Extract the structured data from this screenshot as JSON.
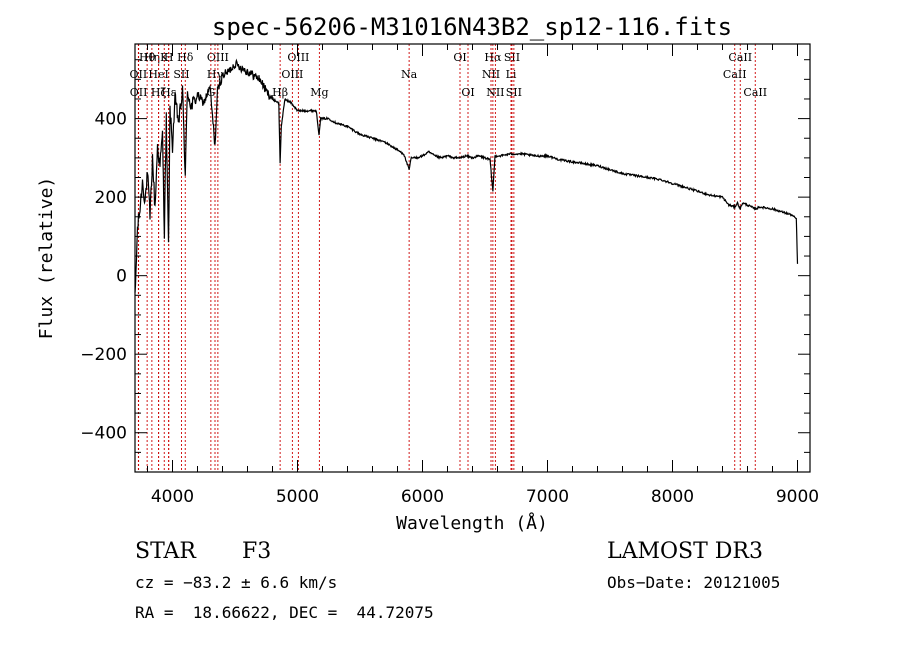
{
  "chart_data": {
    "type": "line",
    "title": "spec-56206-M31016N43B2_sp12-116.fits",
    "xlabel": "Wavelength (Å)",
    "ylabel": "Flux (relative)",
    "xlim": [
      3700,
      9100
    ],
    "ylim": [
      -500,
      590
    ],
    "xticks": [
      4000,
      5000,
      6000,
      7000,
      8000,
      9000
    ],
    "xtick_labels": [
      "4000",
      "5000",
      "6000",
      "7000",
      "8000",
      "9000"
    ],
    "yticks": [
      -400,
      -200,
      0,
      200,
      400
    ],
    "ytick_labels": [
      "−400",
      "−200",
      "0",
      "200",
      "400"
    ],
    "grid": false,
    "series": [
      {
        "name": "spectrum",
        "x": [
          3700,
          3720,
          3740,
          3760,
          3780,
          3800,
          3820,
          3840,
          3860,
          3880,
          3900,
          3920,
          3935,
          3950,
          3968,
          3980,
          4000,
          4020,
          4050,
          4080,
          4102,
          4120,
          4150,
          4200,
          4250,
          4300,
          4340,
          4360,
          4400,
          4450,
          4500,
          4550,
          4600,
          4650,
          4700,
          4750,
          4800,
          4850,
          4861,
          4870,
          4900,
          4950,
          5000,
          5050,
          5100,
          5150,
          5172,
          5185,
          5200,
          5250,
          5300,
          5400,
          5500,
          5600,
          5700,
          5800,
          5850,
          5893,
          5910,
          5950,
          6000,
          6050,
          6100,
          6150,
          6200,
          6250,
          6300,
          6350,
          6400,
          6450,
          6500,
          6540,
          6563,
          6580,
          6620,
          6700,
          6800,
          6900,
          7000,
          7100,
          7200,
          7300,
          7400,
          7500,
          7600,
          7700,
          7800,
          7900,
          8000,
          8100,
          8200,
          8300,
          8400,
          8450,
          8498,
          8520,
          8542,
          8560,
          8600,
          8662,
          8700,
          8800,
          8900,
          8950,
          8990,
          9000
        ],
        "values": [
          -60,
          120,
          170,
          240,
          190,
          260,
          150,
          300,
          170,
          330,
          280,
          360,
          110,
          400,
          70,
          420,
          330,
          450,
          390,
          470,
          260,
          470,
          430,
          460,
          440,
          480,
          330,
          470,
          510,
          520,
          540,
          530,
          520,
          510,
          500,
          470,
          450,
          440,
          285,
          380,
          450,
          440,
          420,
          420,
          420,
          420,
          360,
          400,
          400,
          400,
          390,
          380,
          360,
          350,
          340,
          320,
          310,
          270,
          300,
          300,
          305,
          315,
          305,
          300,
          305,
          300,
          300,
          305,
          300,
          305,
          300,
          295,
          215,
          305,
          305,
          310,
          310,
          305,
          305,
          295,
          290,
          285,
          280,
          270,
          260,
          255,
          250,
          245,
          235,
          225,
          215,
          205,
          200,
          180,
          175,
          185,
          170,
          185,
          180,
          170,
          175,
          170,
          160,
          155,
          145,
          30
        ]
      }
    ],
    "lines": [
      {
        "name": "Hθ",
        "wavelength": 3797,
        "row": 1
      },
      {
        "name": "OII",
        "wavelength": 3727,
        "row": 2
      },
      {
        "name": "OII",
        "wavelength": 3729,
        "row": 3
      },
      {
        "name": "K",
        "wavelength": 3934,
        "row": 1
      },
      {
        "name": "H",
        "wavelength": 3969,
        "row": 1
      },
      {
        "name": "HeI",
        "wavelength": 3889,
        "row": 2
      },
      {
        "name": "Hη",
        "wavelength": 3835,
        "row": 1
      },
      {
        "name": "Hζ",
        "wavelength": 3889,
        "row": 3
      },
      {
        "name": "Hε",
        "wavelength": 3970,
        "row": 3
      },
      {
        "name": "SII",
        "wavelength": 4072,
        "row": 2
      },
      {
        "name": "Hδ",
        "wavelength": 4102,
        "row": 1
      },
      {
        "name": "OIII",
        "wavelength": 4363,
        "row": 1
      },
      {
        "name": "Hγ",
        "wavelength": 4340,
        "row": 2
      },
      {
        "name": "G",
        "wavelength": 4307,
        "row": 3
      },
      {
        "name": "OIII",
        "wavelength": 5007,
        "row": 1
      },
      {
        "name": "OIII",
        "wavelength": 4959,
        "row": 2
      },
      {
        "name": "Hβ",
        "wavelength": 4861,
        "row": 4
      },
      {
        "name": "Mg",
        "wavelength": 5175,
        "row": 4
      },
      {
        "name": "Na",
        "wavelength": 5893,
        "row": 2
      },
      {
        "name": "OI",
        "wavelength": 6300,
        "row": 1
      },
      {
        "name": "OI",
        "wavelength": 6364,
        "row": 3
      },
      {
        "name": "Hα",
        "wavelength": 6563,
        "row": 1
      },
      {
        "name": "SII",
        "wavelength": 6716,
        "row": 1
      },
      {
        "name": "NII",
        "wavelength": 6548,
        "row": 2
      },
      {
        "name": "Li",
        "wavelength": 6708,
        "row": 2
      },
      {
        "name": "NII",
        "wavelength": 6583,
        "row": 3
      },
      {
        "name": "SII",
        "wavelength": 6731,
        "row": 3
      },
      {
        "name": "CaII",
        "wavelength": 8542,
        "row": 1
      },
      {
        "name": "CaII",
        "wavelength": 8498,
        "row": 2
      },
      {
        "name": "CaII",
        "wavelength": 8662,
        "row": 3
      }
    ]
  },
  "info": {
    "object_class": "STAR",
    "subclass": "F3",
    "survey": "LAMOST DR3",
    "redshift": "cz = −83.2 ± 6.6 km/s",
    "obs_date": "Obs−Date: 20121005",
    "coords": "RA =  18.66622, DEC =  44.72075"
  }
}
